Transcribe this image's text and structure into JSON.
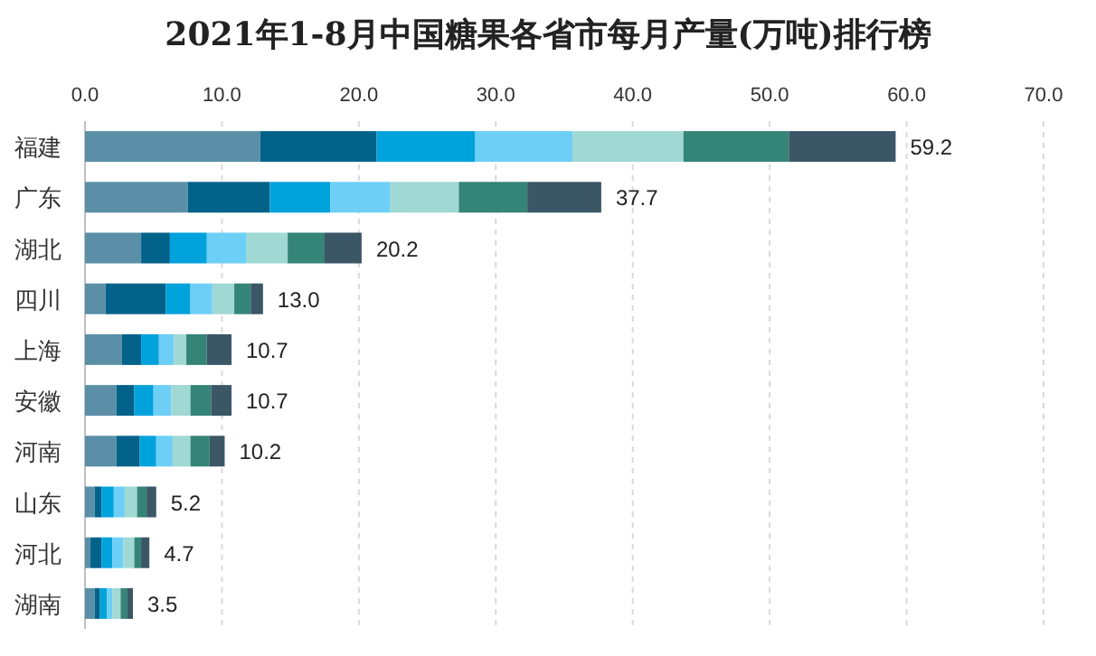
{
  "chart_data": {
    "type": "bar",
    "title": "2021年1-8月中国糖果各省市每月产量(万吨)排行榜",
    "orientation": "horizontal",
    "stacked": true,
    "categories": [
      "福建",
      "广东",
      "湖北",
      "四川",
      "上海",
      "安徽",
      "河南",
      "山东",
      "河北",
      "湖南"
    ],
    "series": [
      {
        "color": "#5b8fa8",
        "values": [
          12.8,
          7.5,
          4.1,
          1.5,
          2.7,
          2.3,
          2.3,
          0.7,
          0.4,
          0.7
        ]
      },
      {
        "color": "#03628a",
        "values": [
          8.5,
          6.0,
          2.1,
          4.4,
          1.4,
          1.3,
          1.7,
          0.5,
          0.8,
          0.4
        ]
      },
      {
        "color": "#00a2dc",
        "values": [
          7.2,
          4.4,
          2.7,
          1.8,
          1.3,
          1.4,
          1.2,
          0.9,
          0.8,
          0.5
        ]
      },
      {
        "color": "#6dcff6",
        "values": [
          7.1,
          4.4,
          2.9,
          1.6,
          1.1,
          1.3,
          1.2,
          0.8,
          0.8,
          0.4
        ]
      },
      {
        "color": "#a0d8d4",
        "values": [
          8.1,
          5.0,
          3.0,
          1.6,
          0.9,
          1.4,
          1.3,
          0.9,
          0.8,
          0.6
        ]
      },
      {
        "color": "#358478",
        "values": [
          7.7,
          5.0,
          2.7,
          1.2,
          1.5,
          1.5,
          1.4,
          0.7,
          0.5,
          0.5
        ]
      },
      {
        "color": "#3b5766",
        "values": [
          7.8,
          5.4,
          2.7,
          0.9,
          1.8,
          1.5,
          1.1,
          0.7,
          0.6,
          0.4
        ]
      }
    ],
    "totals": [
      "59.2",
      "37.7",
      "20.2",
      "13.0",
      "10.7",
      "10.7",
      "10.2",
      "5.2",
      "4.7",
      "3.5"
    ],
    "xlim": [
      0,
      70
    ],
    "xticks": [
      {
        "value": 0,
        "label": "0.0"
      },
      {
        "value": 10,
        "label": "10.0"
      },
      {
        "value": 20,
        "label": "20.0"
      },
      {
        "value": 30,
        "label": "30.0"
      },
      {
        "value": 40,
        "label": "40.0"
      },
      {
        "value": 50,
        "label": "50.0"
      },
      {
        "value": 60,
        "label": "60.0"
      },
      {
        "value": 70,
        "label": "70.0"
      }
    ],
    "grid": "x"
  }
}
